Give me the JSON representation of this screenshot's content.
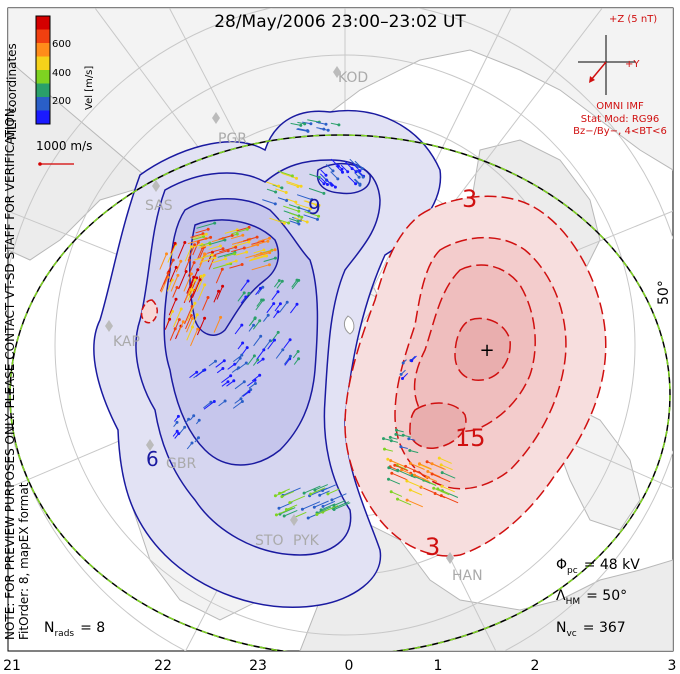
{
  "title": "28/May/2006 23:00–23:02 UT",
  "colorbar": {
    "ticks": [
      "600",
      "400",
      "200"
    ],
    "label": "Vel [m/s]",
    "colors": [
      "#d40000",
      "#f04010",
      "#ff8c1a",
      "#f5d21a",
      "#7ed321",
      "#2aa06a",
      "#2a5fc8",
      "#1a1aff"
    ]
  },
  "coord_label": "MLT coordinates",
  "vector_scale": "1000 m/s",
  "note": "NOTE: FOR PREVIEW PURPOSES ONLY. PLEASE CONTACT VT-SD STAFF FOR VERIFICATION.",
  "fit_order": "FitOrder: 8, mapEX format",
  "imf": {
    "z_label": "+Z (5 nT)",
    "y_label": "+Y",
    "source": "OMNI IMF",
    "model": "Stat Mod: RG96",
    "condition": "Bz−/By−, 4<BT<6"
  },
  "latitude_label": "50°",
  "stations": [
    "KOD",
    "PGR",
    "SAS",
    "KAP",
    "GBR",
    "STO",
    "PYK",
    "HAN"
  ],
  "contour_labels": {
    "neg": "6",
    "neg2": "9",
    "pos": "3",
    "pos2": "15",
    "pos3": "3"
  },
  "stats": {
    "phi_sym": "Φ",
    "phi_sub": "pc",
    "phi_val": "= 48 kV",
    "lam_sym": "Λ",
    "lam_sub": "HM",
    "lam_val": "= 50°",
    "nrads_sym": "N",
    "nrads_sub": "rads",
    "nrads_val": "= 8",
    "nvc_sym": "N",
    "nvc_sub": "vc",
    "nvc_val": "= 367"
  },
  "mlt_ticks": [
    "21",
    "22",
    "23",
    "0",
    "1",
    "2",
    "3"
  ],
  "colors": {
    "neg_fill": "#d8d8f0",
    "neg_line": "#1a1aa0",
    "pos_fill": "#f7d8d8",
    "pos_line": "#d01010",
    "imf": "#d01010",
    "land": "#ececec",
    "grid": "#c8c8c8",
    "boundary": "#7ed321"
  }
}
